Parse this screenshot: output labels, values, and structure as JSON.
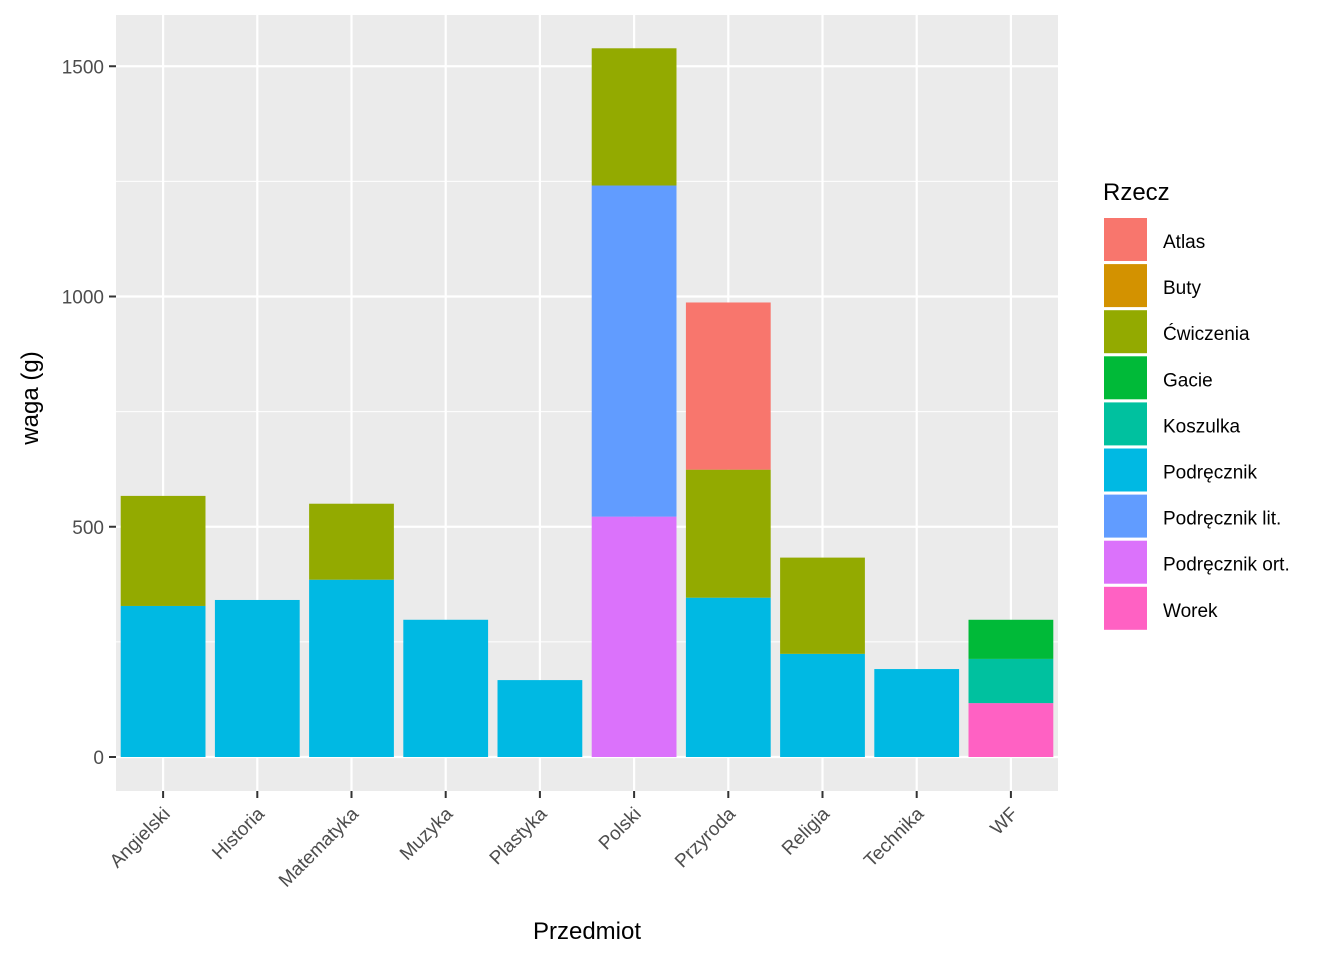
{
  "chart_data": {
    "type": "bar",
    "stacked": true,
    "title": "",
    "xlabel": "Przedmiot",
    "ylabel": "waga (g)",
    "ylim": [
      -70,
      1580
    ],
    "yticks": [
      0,
      500,
      1000,
      1500
    ],
    "ytick_labels": [
      "0",
      "500",
      "1000",
      "1500"
    ],
    "grid": true,
    "legend_title": "Rzecz",
    "legend_position": "right",
    "categories": [
      "Angielski",
      "Historia",
      "Matematyka",
      "Muzyka",
      "Plastyka",
      "Polski",
      "Przyroda",
      "Religia",
      "Technika",
      "WF"
    ],
    "series": [
      {
        "name": "Atlas",
        "color": "#F8766D",
        "values": [
          0,
          0,
          0,
          0,
          0,
          0,
          363,
          0,
          0,
          0
        ]
      },
      {
        "name": "Buty",
        "color": "#D39200",
        "values": [
          0,
          0,
          0,
          0,
          0,
          0,
          0,
          0,
          0,
          0
        ]
      },
      {
        "name": "Ćwiczenia",
        "color": "#93AA00",
        "values": [
          239,
          0,
          165,
          0,
          0,
          298,
          278,
          209,
          0,
          0
        ]
      },
      {
        "name": "Gacie",
        "color": "#00BA38",
        "values": [
          0,
          0,
          0,
          0,
          0,
          0,
          0,
          0,
          0,
          85
        ]
      },
      {
        "name": "Koszulka",
        "color": "#00C19F",
        "values": [
          0,
          0,
          0,
          0,
          0,
          0,
          0,
          0,
          0,
          96
        ]
      },
      {
        "name": "Podręcznik",
        "color": "#00B9E3",
        "values": [
          328,
          341,
          385,
          298,
          167,
          0,
          346,
          224,
          191,
          0
        ]
      },
      {
        "name": "Podręcznik lit.",
        "color": "#619CFF",
        "values": [
          0,
          0,
          0,
          0,
          0,
          719,
          0,
          0,
          0,
          0
        ]
      },
      {
        "name": "Podręcznik ort.",
        "color": "#DB72FB",
        "values": [
          0,
          0,
          0,
          0,
          0,
          522,
          0,
          0,
          0,
          0
        ]
      },
      {
        "name": "Worek",
        "color": "#FF61C3",
        "values": [
          0,
          0,
          0,
          0,
          0,
          0,
          0,
          0,
          0,
          117
        ]
      }
    ],
    "stack_order_bottom_to_top": [
      "Worek",
      "Podręcznik ort.",
      "Podręcznik lit.",
      "Podręcznik",
      "Koszulka",
      "Gacie",
      "Ćwiczenia",
      "Buty",
      "Atlas"
    ]
  }
}
